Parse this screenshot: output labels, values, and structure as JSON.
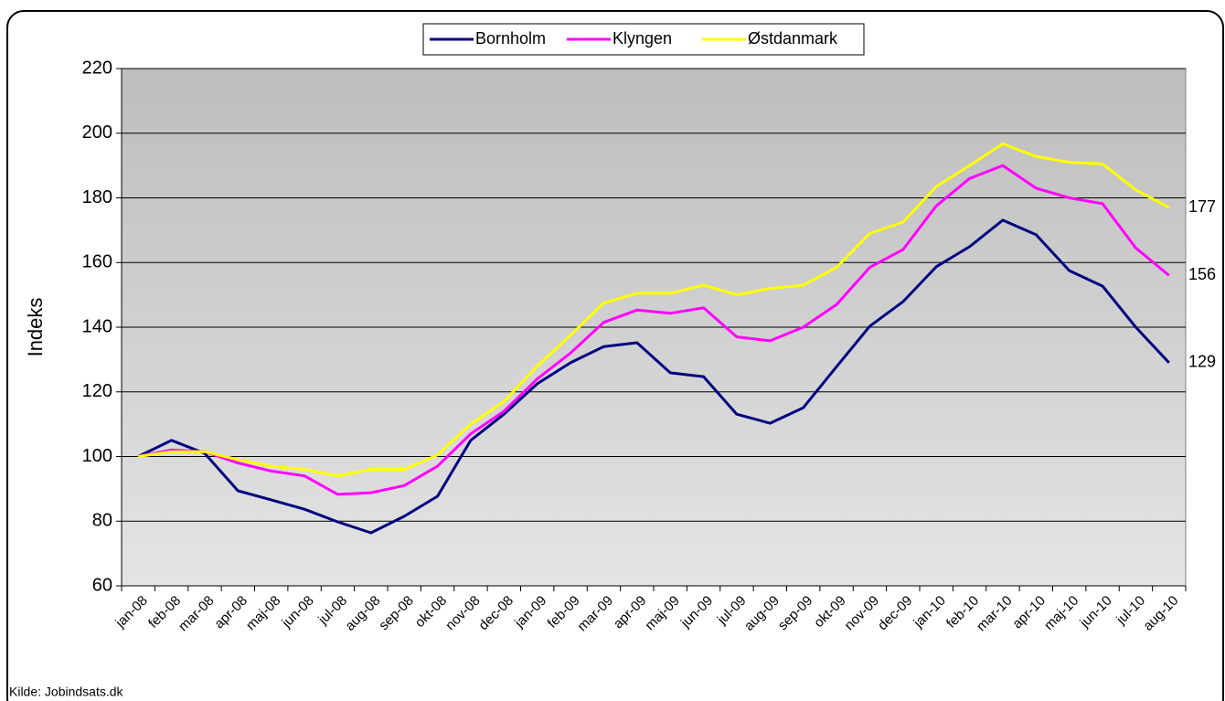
{
  "chart_data": {
    "type": "line",
    "y_label": "Indeks",
    "source": "Kilde: Jobindsats.dk",
    "categories": [
      "jan-08",
      "feb-08",
      "mar-08",
      "apr-08",
      "maj-08",
      "jun-08",
      "jul-08",
      "aug-08",
      "sep-08",
      "okt-08",
      "nov-08",
      "dec-08",
      "jan-09",
      "feb-09",
      "mar-09",
      "apr-09",
      "maj-09",
      "jun-09",
      "jul-09",
      "aug-09",
      "sep-09",
      "okt-09",
      "nov-09",
      "dec-09",
      "jan-10",
      "feb-10",
      "mar-10",
      "apr-10",
      "maj-10",
      "jun-10",
      "jul-10",
      "aug-10"
    ],
    "series": [
      {
        "name": "Bornholm",
        "color": "#000080",
        "values": [
          100,
          105,
          101,
          89.4,
          86.6,
          83.7,
          79.8,
          76.4,
          81.5,
          87.7,
          105,
          113.1,
          122.5,
          129,
          134,
          135.2,
          125.9,
          124.7,
          113.1,
          110.3,
          115.1,
          127.8,
          140.3,
          147.9,
          158.7,
          164.9,
          173.1,
          168.6,
          157.5,
          152.7,
          140,
          129
        ]
      },
      {
        "name": "Klyngen",
        "color": "#ff00ff",
        "values": [
          100,
          102,
          101.5,
          98,
          95.5,
          94,
          88.3,
          88.8,
          91,
          97,
          107,
          114,
          124,
          132,
          141.5,
          145.3,
          144.3,
          146,
          137,
          135.8,
          140,
          147,
          158.5,
          164,
          177.5,
          186,
          190,
          183,
          180,
          178.2,
          164.5,
          156
        ]
      },
      {
        "name": "Østdanmark",
        "color": "#ffff00",
        "values": [
          100,
          101.5,
          101.5,
          99,
          97,
          96,
          94,
          96,
          96,
          100.5,
          110,
          117,
          128,
          137.5,
          147.5,
          150.5,
          150.5,
          153,
          150,
          152,
          153,
          158.5,
          169,
          172.5,
          183.5,
          190,
          196.7,
          192.8,
          191,
          190.5,
          182.5,
          177
        ]
      }
    ],
    "ylim": [
      60,
      220
    ],
    "yticks": [
      60,
      80,
      100,
      120,
      140,
      160,
      180,
      200,
      220
    ],
    "grid": true,
    "legend": "top"
  }
}
